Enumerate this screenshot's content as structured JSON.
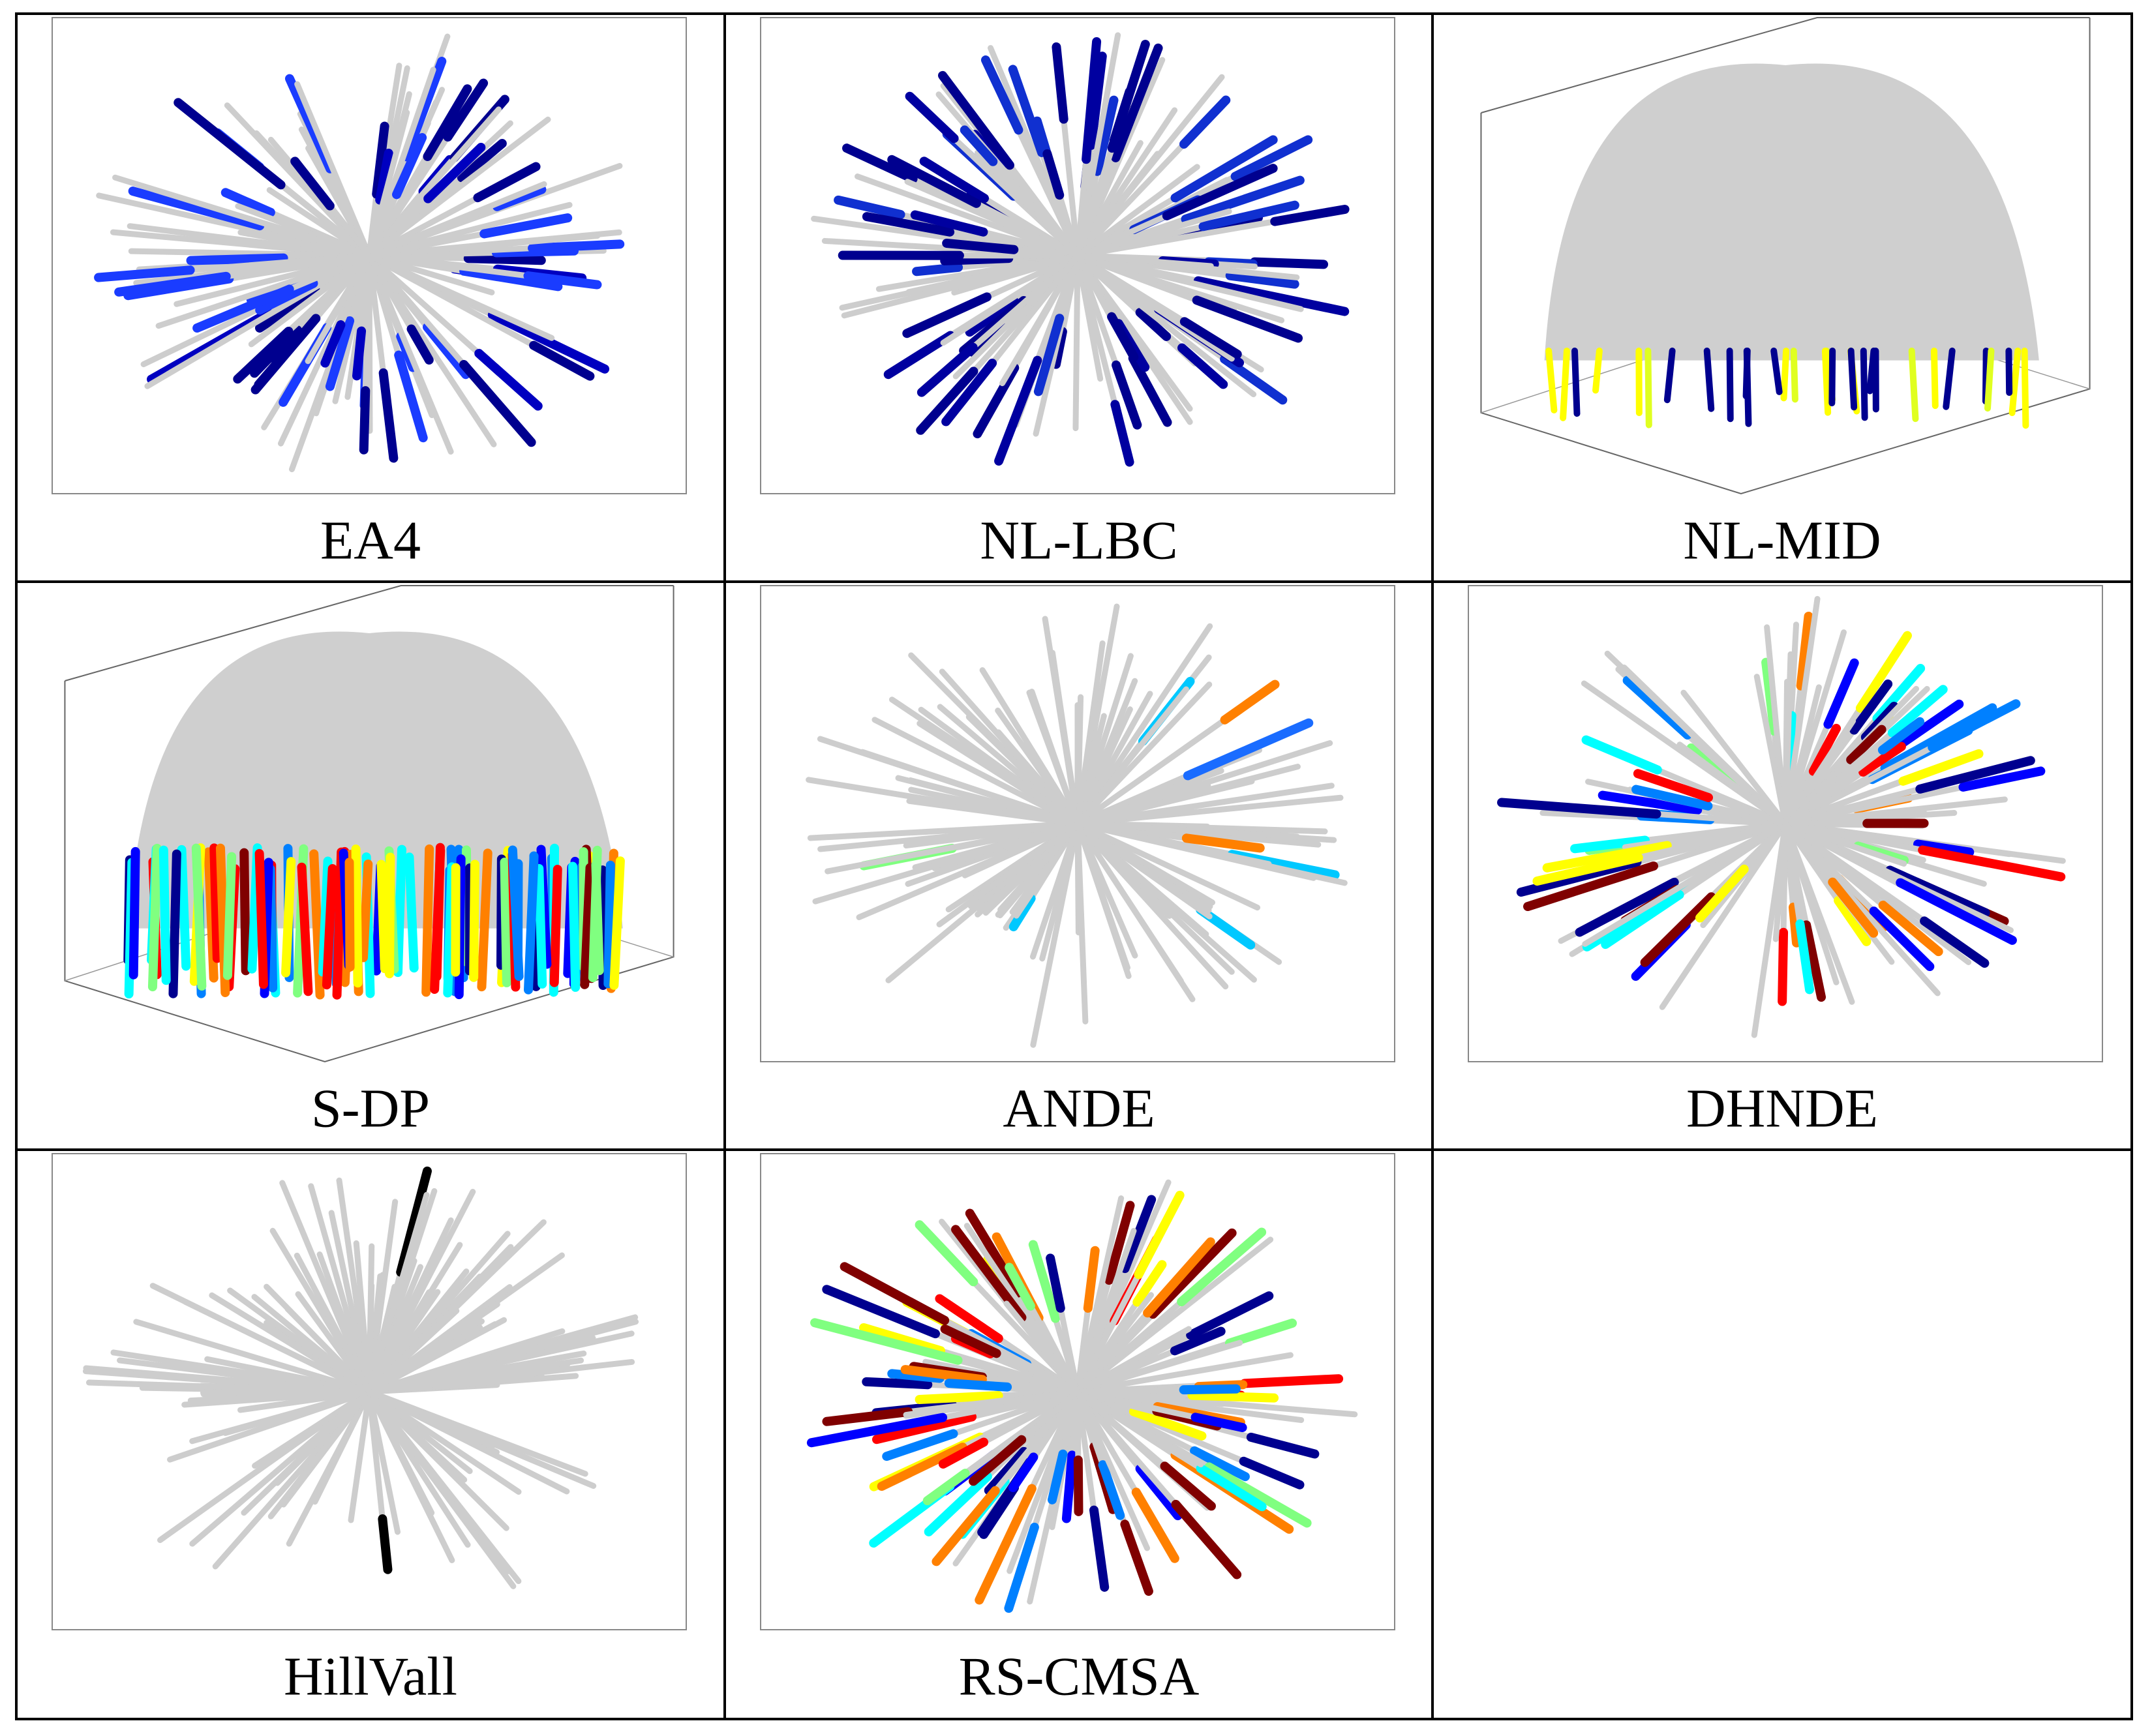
{
  "panels": [
    {
      "label": "EA4"
    },
    {
      "label": "NL-LBC"
    },
    {
      "label": "NL-MID"
    },
    {
      "label": "S-DP"
    },
    {
      "label": "ANDE"
    },
    {
      "label": "DHNDE"
    },
    {
      "label": "HillVall"
    },
    {
      "label": "RS-CMSA"
    }
  ]
}
